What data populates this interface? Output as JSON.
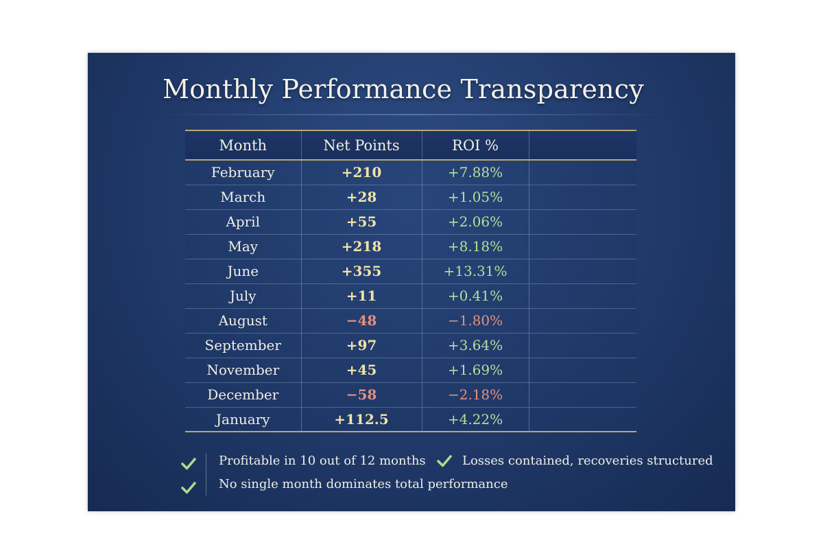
{
  "title": "Monthly Performance Transparency",
  "colors": {
    "positive_points": "#f2e3a6",
    "positive_roi": "#b8df9a",
    "negative": "#e6907e",
    "header_rule": "#b9a874",
    "background": "#223c6d"
  },
  "chart_data": {
    "type": "table",
    "title": "Monthly Performance Transparency",
    "columns": [
      "Month",
      "Net Points",
      "ROI %",
      ""
    ],
    "rows": [
      {
        "month": "February",
        "net_points": "+210",
        "roi": "+7.88%",
        "negative": false
      },
      {
        "month": "March",
        "net_points": "+28",
        "roi": "+1.05%",
        "negative": false
      },
      {
        "month": "April",
        "net_points": "+55",
        "roi": "+2.06%",
        "negative": false
      },
      {
        "month": "May",
        "net_points": "+218",
        "roi": "+8.18%",
        "negative": false
      },
      {
        "month": "June",
        "net_points": "+355",
        "roi": "+13.31%",
        "negative": false
      },
      {
        "month": "July",
        "net_points": "+11",
        "roi": "+0.41%",
        "negative": false
      },
      {
        "month": "August",
        "net_points": "−48",
        "roi": "−1.80%",
        "negative": true
      },
      {
        "month": "September",
        "net_points": "+97",
        "roi": "+3.64%",
        "negative": false
      },
      {
        "month": "November",
        "net_points": "+45",
        "roi": "+1.69%",
        "negative": false
      },
      {
        "month": "December",
        "net_points": "−58",
        "roi": "−2.18%",
        "negative": true
      },
      {
        "month": "January",
        "net_points": "+112.5",
        "roi": "+4.22%",
        "negative": false
      }
    ]
  },
  "notes": [
    {
      "icon": "check-icon",
      "text": "Profitable in 10 out of 12 months"
    },
    {
      "icon": "check-icon",
      "text": "Losses contained, recoveries structured"
    },
    {
      "icon": "check-icon",
      "text": "No single month dominates total performance"
    }
  ]
}
